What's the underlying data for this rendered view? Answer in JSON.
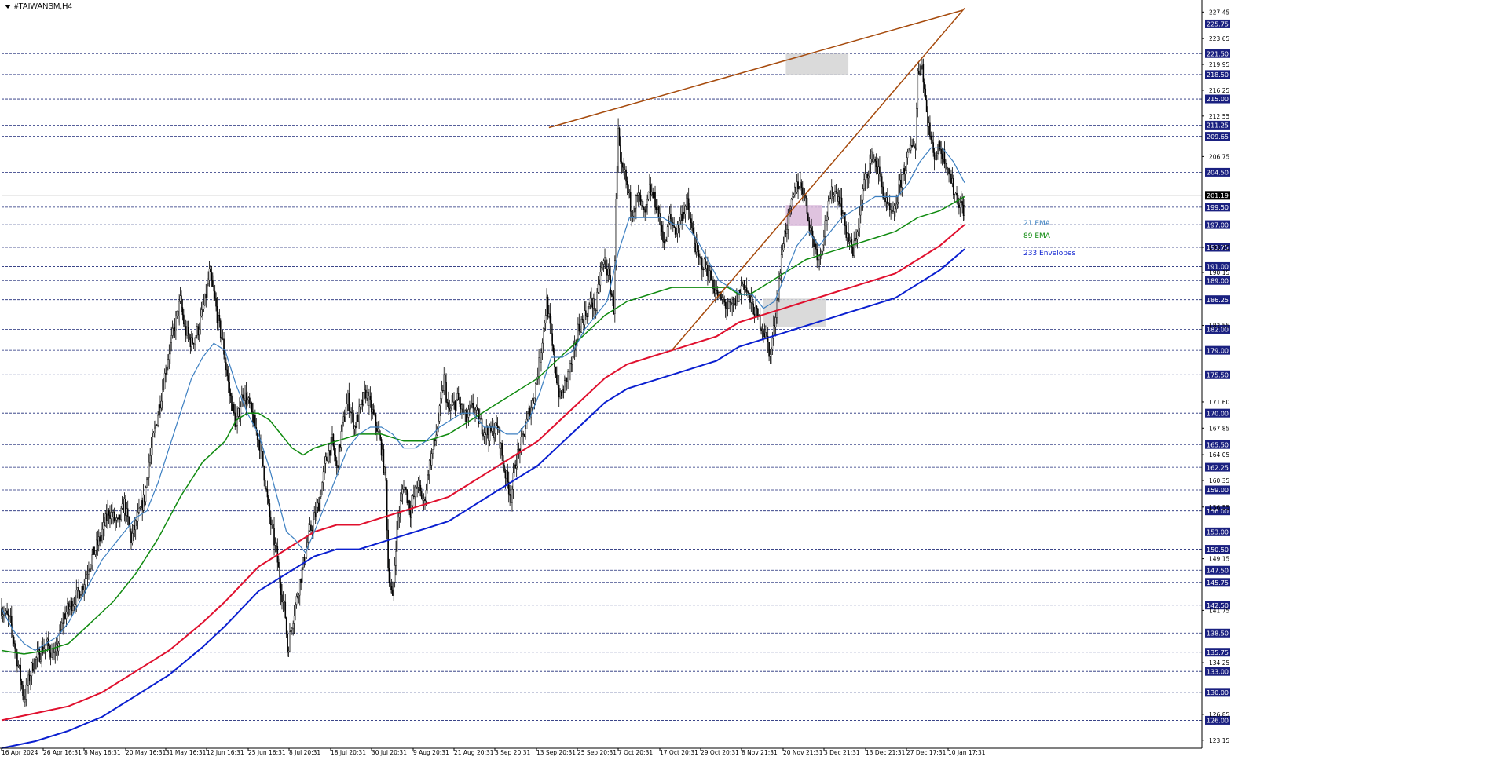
{
  "header": {
    "symbol_label": "#TAIWANSM,H4"
  },
  "colors": {
    "background": "#ffffff",
    "grid": "#1e2a78",
    "candle": "#000000",
    "ema21": "#3c7fc1",
    "ema89": "#0f8a0f",
    "envelope_upper": "#e0102e",
    "envelope_lower": "#0a1fd0",
    "trendline": "#a64a0c",
    "zone_gray": "#d3d3d3",
    "zone_purple": "#d9b8d9",
    "label_box": "#1a2080",
    "current_price_box": "#000000"
  },
  "chart_data": {
    "type": "candlestick",
    "timeframe": "H4",
    "ylim": [
      122.0,
      228.5
    ],
    "grid": true,
    "x_tick_labels": [
      "16 Apr 2024",
      "26 Apr 16:31",
      "8 May 16:31",
      "20 May 16:31",
      "31 May 16:31",
      "12 Jun 16:31",
      "25 Jun 16:31",
      "8 Jul 20:31",
      "18 Jul 20:31",
      "30 Jul 20:31",
      "9 Aug 20:31",
      "21 Aug 20:31",
      "3 Sep 20:31",
      "13 Sep 20:31",
      "25 Sep 20:31",
      "7 Oct 20:31",
      "17 Oct 20:31",
      "29 Oct 20:31",
      "8 Nov 21:31",
      "20 Nov 21:31",
      "3 Dec 21:31",
      "13 Dec 21:31",
      "27 Dec 17:31",
      "10 Jan 17:31"
    ],
    "y_tick_labels": [
      "227.45",
      "223.65",
      "219.95",
      "216.25",
      "212.55",
      "206.75",
      "193.75",
      "190.15",
      "182.55",
      "171.60",
      "167.85",
      "164.05",
      "160.35",
      "156.55",
      "149.15",
      "141.75",
      "134.25",
      "126.85",
      "123.15"
    ],
    "y_labels_boxed": [
      "225.75",
      "221.50",
      "218.50",
      "215.00",
      "211.25",
      "209.65",
      "204.50",
      "199.50",
      "197.00",
      "193.75",
      "191.00",
      "189.00",
      "186.25",
      "182.00",
      "179.00",
      "175.50",
      "170.00",
      "165.50",
      "162.25",
      "159.00",
      "156.00",
      "153.00",
      "150.50",
      "147.50",
      "145.75",
      "142.50",
      "138.50",
      "135.75",
      "133.00",
      "130.00",
      "126.00"
    ],
    "current_price": "201.19",
    "legend": [
      {
        "name": "21 EMA",
        "color_key": "ema21"
      },
      {
        "name": "89 EMA",
        "color_key": "ema89"
      },
      {
        "name": "233 Envelopes",
        "color_key": "envelope_lower"
      }
    ],
    "close_path": [
      [
        0,
        142
      ],
      [
        8,
        140
      ],
      [
        16,
        133
      ],
      [
        20,
        129
      ],
      [
        28,
        134
      ],
      [
        40,
        137
      ],
      [
        48,
        135
      ],
      [
        56,
        141
      ],
      [
        64,
        143
      ],
      [
        72,
        145
      ],
      [
        80,
        149
      ],
      [
        88,
        152
      ],
      [
        96,
        156
      ],
      [
        104,
        154
      ],
      [
        110,
        157
      ],
      [
        116,
        152
      ],
      [
        120,
        154
      ],
      [
        128,
        158
      ],
      [
        132,
        163
      ],
      [
        140,
        170
      ],
      [
        150,
        179
      ],
      [
        160,
        186
      ],
      [
        164,
        182
      ],
      [
        170,
        180
      ],
      [
        176,
        182
      ],
      [
        182,
        186
      ],
      [
        186,
        190
      ],
      [
        190,
        187
      ],
      [
        194,
        183
      ],
      [
        198,
        180
      ],
      [
        204,
        173
      ],
      [
        210,
        168
      ],
      [
        216,
        173
      ],
      [
        222,
        171
      ],
      [
        232,
        165
      ],
      [
        236,
        160
      ],
      [
        240,
        155
      ],
      [
        246,
        150
      ],
      [
        250,
        145
      ],
      [
        254,
        141
      ],
      [
        256,
        136
      ],
      [
        260,
        140
      ],
      [
        266,
        145
      ],
      [
        272,
        150
      ],
      [
        276,
        153
      ],
      [
        284,
        157
      ],
      [
        290,
        163
      ],
      [
        296,
        166
      ],
      [
        300,
        162
      ],
      [
        304,
        167
      ],
      [
        310,
        172
      ],
      [
        316,
        168
      ],
      [
        320,
        170
      ],
      [
        326,
        173
      ],
      [
        332,
        170
      ],
      [
        336,
        168
      ],
      [
        340,
        165
      ],
      [
        344,
        160
      ],
      [
        346,
        148
      ],
      [
        350,
        143
      ],
      [
        354,
        154
      ],
      [
        360,
        160
      ],
      [
        366,
        156
      ],
      [
        372,
        160
      ],
      [
        378,
        157
      ],
      [
        382,
        162
      ],
      [
        388,
        166
      ],
      [
        392,
        170
      ],
      [
        396,
        175
      ],
      [
        400,
        170
      ],
      [
        408,
        172
      ],
      [
        416,
        169
      ],
      [
        422,
        171
      ],
      [
        430,
        168
      ],
      [
        436,
        167
      ],
      [
        444,
        168
      ],
      [
        450,
        162
      ],
      [
        456,
        158
      ],
      [
        460,
        163
      ],
      [
        466,
        166
      ],
      [
        472,
        170
      ],
      [
        476,
        172
      ],
      [
        482,
        178
      ],
      [
        488,
        186
      ],
      [
        494,
        178
      ],
      [
        500,
        172
      ],
      [
        506,
        175
      ],
      [
        512,
        178
      ],
      [
        516,
        182
      ],
      [
        522,
        184
      ],
      [
        528,
        186
      ],
      [
        532,
        185
      ],
      [
        536,
        190
      ],
      [
        540,
        192
      ],
      [
        544,
        189
      ],
      [
        548,
        185
      ],
      [
        550,
        200
      ],
      [
        552,
        210
      ],
      [
        554,
        205
      ],
      [
        558,
        204
      ],
      [
        564,
        199
      ],
      [
        570,
        201
      ],
      [
        576,
        198
      ],
      [
        580,
        202
      ],
      [
        586,
        200
      ],
      [
        590,
        197
      ],
      [
        594,
        194
      ],
      [
        598,
        198
      ],
      [
        604,
        196
      ],
      [
        610,
        199
      ],
      [
        614,
        200
      ],
      [
        618,
        196
      ],
      [
        624,
        192
      ],
      [
        630,
        191
      ],
      [
        636,
        189
      ],
      [
        640,
        187
      ],
      [
        646,
        186
      ],
      [
        650,
        185
      ],
      [
        654,
        185
      ],
      [
        660,
        187
      ],
      [
        664,
        189
      ],
      [
        670,
        186
      ],
      [
        676,
        184
      ],
      [
        682,
        182
      ],
      [
        686,
        180
      ],
      [
        688,
        178
      ],
      [
        692,
        183
      ],
      [
        696,
        189
      ],
      [
        700,
        195
      ],
      [
        706,
        199
      ],
      [
        712,
        203
      ],
      [
        718,
        202
      ],
      [
        722,
        198
      ],
      [
        726,
        195
      ],
      [
        732,
        192
      ],
      [
        738,
        198
      ],
      [
        744,
        202
      ],
      [
        750,
        201
      ],
      [
        756,
        196
      ],
      [
        762,
        193
      ],
      [
        768,
        198
      ],
      [
        772,
        203
      ],
      [
        776,
        205
      ],
      [
        780,
        207
      ],
      [
        786,
        204
      ],
      [
        790,
        201
      ],
      [
        794,
        199
      ],
      [
        798,
        198
      ],
      [
        802,
        201
      ],
      [
        806,
        204
      ],
      [
        812,
        207
      ],
      [
        816,
        209
      ],
      [
        818,
        208
      ],
      [
        820,
        219
      ],
      [
        824,
        220
      ],
      [
        828,
        213
      ],
      [
        834,
        207
      ],
      [
        840,
        208
      ],
      [
        846,
        206
      ],
      [
        852,
        202
      ],
      [
        858,
        200
      ],
      [
        862,
        199
      ]
    ],
    "ema21_path": [
      [
        0,
        142
      ],
      [
        10,
        139
      ],
      [
        20,
        137
      ],
      [
        30,
        136
      ],
      [
        40,
        137
      ],
      [
        50,
        138
      ],
      [
        60,
        140
      ],
      [
        70,
        143
      ],
      [
        80,
        146
      ],
      [
        90,
        149
      ],
      [
        100,
        151
      ],
      [
        110,
        153
      ],
      [
        120,
        155
      ],
      [
        130,
        156
      ],
      [
        140,
        160
      ],
      [
        150,
        165
      ],
      [
        160,
        170
      ],
      [
        170,
        175
      ],
      [
        180,
        178
      ],
      [
        190,
        180
      ],
      [
        200,
        179
      ],
      [
        210,
        174
      ],
      [
        220,
        170
      ],
      [
        230,
        167
      ],
      [
        240,
        162
      ],
      [
        250,
        156
      ],
      [
        255,
        153
      ],
      [
        262,
        152
      ],
      [
        272,
        150
      ],
      [
        280,
        153
      ],
      [
        290,
        157
      ],
      [
        300,
        161
      ],
      [
        310,
        165
      ],
      [
        320,
        167
      ],
      [
        330,
        168
      ],
      [
        340,
        168
      ],
      [
        350,
        167
      ],
      [
        360,
        165
      ],
      [
        370,
        165
      ],
      [
        380,
        166
      ],
      [
        392,
        168
      ],
      [
        402,
        169
      ],
      [
        412,
        170
      ],
      [
        422,
        170
      ],
      [
        432,
        168
      ],
      [
        442,
        168
      ],
      [
        452,
        167
      ],
      [
        462,
        167
      ],
      [
        472,
        169
      ],
      [
        482,
        173
      ],
      [
        492,
        178
      ],
      [
        502,
        178
      ],
      [
        512,
        179
      ],
      [
        522,
        182
      ],
      [
        532,
        184
      ],
      [
        542,
        186
      ],
      [
        552,
        193
      ],
      [
        562,
        198
      ],
      [
        572,
        198
      ],
      [
        582,
        198
      ],
      [
        592,
        198
      ],
      [
        602,
        197
      ],
      [
        612,
        197
      ],
      [
        622,
        195
      ],
      [
        632,
        192
      ],
      [
        642,
        189
      ],
      [
        652,
        188
      ],
      [
        662,
        187
      ],
      [
        672,
        187
      ],
      [
        682,
        185
      ],
      [
        692,
        186
      ],
      [
        702,
        190
      ],
      [
        712,
        194
      ],
      [
        722,
        196
      ],
      [
        732,
        194
      ],
      [
        742,
        196
      ],
      [
        752,
        198
      ],
      [
        762,
        199
      ],
      [
        772,
        200
      ],
      [
        782,
        201
      ],
      [
        792,
        201
      ],
      [
        802,
        201
      ],
      [
        812,
        203
      ],
      [
        822,
        206
      ],
      [
        832,
        208
      ],
      [
        842,
        208
      ],
      [
        852,
        206
      ],
      [
        862,
        203
      ]
    ],
    "ema89_path": [
      [
        0,
        136
      ],
      [
        20,
        135.5
      ],
      [
        40,
        136
      ],
      [
        60,
        137
      ],
      [
        80,
        140
      ],
      [
        100,
        143
      ],
      [
        120,
        147
      ],
      [
        140,
        152
      ],
      [
        160,
        158
      ],
      [
        180,
        163
      ],
      [
        200,
        166
      ],
      [
        210,
        169
      ],
      [
        220,
        170
      ],
      [
        230,
        170
      ],
      [
        240,
        169
      ],
      [
        250,
        167
      ],
      [
        260,
        165
      ],
      [
        270,
        164
      ],
      [
        280,
        165
      ],
      [
        300,
        166
      ],
      [
        320,
        167
      ],
      [
        340,
        167
      ],
      [
        360,
        166
      ],
      [
        380,
        166
      ],
      [
        400,
        167
      ],
      [
        420,
        169
      ],
      [
        440,
        171
      ],
      [
        460,
        173
      ],
      [
        480,
        175
      ],
      [
        500,
        178
      ],
      [
        520,
        181
      ],
      [
        540,
        184
      ],
      [
        560,
        186
      ],
      [
        580,
        187
      ],
      [
        600,
        188
      ],
      [
        620,
        188
      ],
      [
        640,
        188
      ],
      [
        650,
        188
      ],
      [
        660,
        187
      ],
      [
        670,
        187
      ],
      [
        680,
        188
      ],
      [
        700,
        190
      ],
      [
        720,
        192
      ],
      [
        740,
        193
      ],
      [
        760,
        194
      ],
      [
        780,
        195
      ],
      [
        800,
        196
      ],
      [
        820,
        198
      ],
      [
        840,
        199
      ],
      [
        862,
        201
      ]
    ],
    "env_upper_path": [
      [
        0,
        126
      ],
      [
        30,
        127
      ],
      [
        60,
        128
      ],
      [
        90,
        130
      ],
      [
        120,
        133
      ],
      [
        150,
        136
      ],
      [
        180,
        140
      ],
      [
        200,
        143
      ],
      [
        230,
        148
      ],
      [
        260,
        151
      ],
      [
        280,
        153
      ],
      [
        300,
        154
      ],
      [
        320,
        154
      ],
      [
        340,
        155
      ],
      [
        360,
        156
      ],
      [
        380,
        157
      ],
      [
        400,
        158
      ],
      [
        420,
        160
      ],
      [
        440,
        162
      ],
      [
        460,
        164
      ],
      [
        480,
        166
      ],
      [
        500,
        169
      ],
      [
        520,
        172
      ],
      [
        540,
        175
      ],
      [
        560,
        177
      ],
      [
        580,
        178
      ],
      [
        600,
        179
      ],
      [
        620,
        180
      ],
      [
        640,
        181
      ],
      [
        660,
        183
      ],
      [
        680,
        184
      ],
      [
        700,
        185
      ],
      [
        720,
        186
      ],
      [
        740,
        187
      ],
      [
        760,
        188
      ],
      [
        780,
        189
      ],
      [
        800,
        190
      ],
      [
        820,
        192
      ],
      [
        840,
        194
      ],
      [
        862,
        197
      ]
    ],
    "env_lower_path": [
      [
        0,
        122
      ],
      [
        30,
        123
      ],
      [
        60,
        124.5
      ],
      [
        90,
        126.5
      ],
      [
        120,
        129.5
      ],
      [
        150,
        132.5
      ],
      [
        180,
        136.5
      ],
      [
        200,
        139.5
      ],
      [
        230,
        144.5
      ],
      [
        260,
        147.5
      ],
      [
        280,
        149.5
      ],
      [
        300,
        150.5
      ],
      [
        320,
        150.5
      ],
      [
        340,
        151.5
      ],
      [
        360,
        152.5
      ],
      [
        380,
        153.5
      ],
      [
        400,
        154.5
      ],
      [
        420,
        156.5
      ],
      [
        440,
        158.5
      ],
      [
        460,
        160.5
      ],
      [
        480,
        162.5
      ],
      [
        500,
        165.5
      ],
      [
        520,
        168.5
      ],
      [
        540,
        171.5
      ],
      [
        560,
        173.5
      ],
      [
        580,
        174.5
      ],
      [
        600,
        175.5
      ],
      [
        620,
        176.5
      ],
      [
        640,
        177.5
      ],
      [
        660,
        179.5
      ],
      [
        680,
        180.5
      ],
      [
        700,
        181.5
      ],
      [
        720,
        182.5
      ],
      [
        740,
        183.5
      ],
      [
        760,
        184.5
      ],
      [
        780,
        185.5
      ],
      [
        800,
        186.5
      ],
      [
        820,
        188.5
      ],
      [
        840,
        190.5
      ],
      [
        862,
        193.5
      ]
    ],
    "trendlines": [
      {
        "name": "resistance",
        "from": [
          490,
          210.9
        ],
        "to": [
          860,
          227.7
        ]
      },
      {
        "name": "support",
        "from": [
          600,
          179.0
        ],
        "to": [
          862,
          228.0
        ]
      }
    ],
    "zones": [
      {
        "name": "gray-top-zone",
        "x_from": 702,
        "x_to": 758,
        "y_from": 218.4,
        "y_to": 221.5,
        "color_key": "zone_gray"
      },
      {
        "name": "purple-zone",
        "x_from": 702,
        "x_to": 734,
        "y_from": 196.8,
        "y_to": 199.8,
        "color_key": "zone_purple"
      },
      {
        "name": "gray-low-zone",
        "x_from": 682,
        "x_to": 738,
        "y_from": 182.3,
        "y_to": 186.4,
        "color_key": "zone_gray"
      }
    ]
  }
}
